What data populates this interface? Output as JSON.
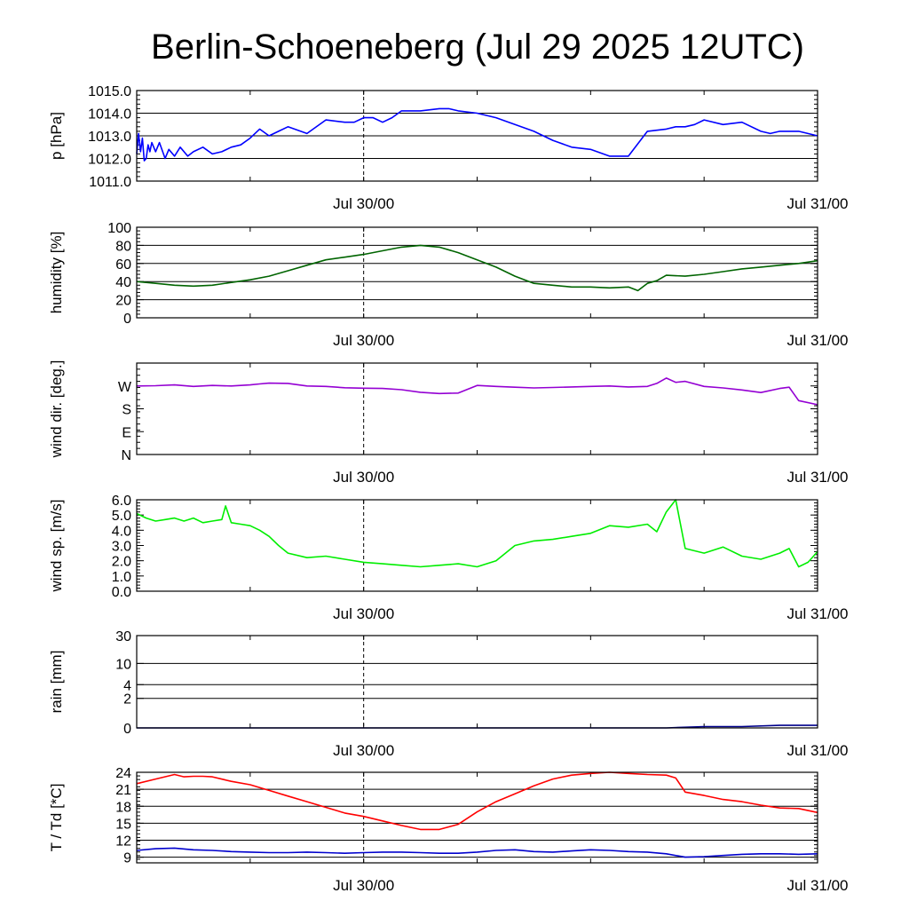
{
  "page": {
    "title": "Berlin-Schoeneberg (Jul 29 2025 12UTC)"
  },
  "chart_data": [
    {
      "type": "line",
      "id": "pressure",
      "ylabel": "p [hPa]",
      "ylim": [
        1011.0,
        1015.0
      ],
      "yticks": [
        {
          "v": 1011.0,
          "label": "1011.0"
        },
        {
          "v": 1012.0,
          "label": "1012.0"
        },
        {
          "v": 1013.0,
          "label": "1013.0"
        },
        {
          "v": 1014.0,
          "label": "1014.0"
        },
        {
          "v": 1015.0,
          "label": "1015.0"
        }
      ],
      "grid": true,
      "xlim": [
        0,
        36
      ],
      "xticks": [
        {
          "v": 12,
          "label": "Jul 30/00"
        },
        {
          "v": 36,
          "label": "Jul 31/00"
        }
      ],
      "series": [
        {
          "color": "#0000ff",
          "x": [
            0,
            0.1,
            0.2,
            0.3,
            0.4,
            0.5,
            0.6,
            0.7,
            0.8,
            1.0,
            1.2,
            1.5,
            1.7,
            2.0,
            2.3,
            2.7,
            3.0,
            3.5,
            4.0,
            4.5,
            5.0,
            5.5,
            6.0,
            6.5,
            7.0,
            7.5,
            8.0,
            9.0,
            10.0,
            11.0,
            11.5,
            12.0,
            12.5,
            13.0,
            13.5,
            14.0,
            15.0,
            16.0,
            16.5,
            17.0,
            18.0,
            19.0,
            20.0,
            21.0,
            22.0,
            23.0,
            24.0,
            25.0,
            26.0,
            27.0,
            28.0,
            28.5,
            29.0,
            29.5,
            30.0,
            31.0,
            32.0,
            33.0,
            33.5,
            34.0,
            35.0,
            36.0
          ],
          "y": [
            1012.2,
            1013.1,
            1012.3,
            1012.9,
            1011.9,
            1012.0,
            1012.6,
            1012.3,
            1012.7,
            1012.3,
            1012.7,
            1012.0,
            1012.4,
            1012.1,
            1012.5,
            1012.1,
            1012.3,
            1012.5,
            1012.2,
            1012.3,
            1012.5,
            1012.6,
            1012.9,
            1013.3,
            1013.0,
            1013.2,
            1013.4,
            1013.1,
            1013.7,
            1013.6,
            1013.6,
            1013.8,
            1013.8,
            1013.6,
            1013.8,
            1014.1,
            1014.1,
            1014.2,
            1014.2,
            1014.1,
            1014.0,
            1013.8,
            1013.5,
            1013.2,
            1012.8,
            1012.5,
            1012.4,
            1012.1,
            1012.1,
            1013.2,
            1013.3,
            1013.4,
            1013.4,
            1013.5,
            1013.7,
            1013.5,
            1013.6,
            1013.2,
            1013.1,
            1013.2,
            1013.2,
            1013.0
          ]
        }
      ]
    },
    {
      "type": "line",
      "id": "humidity",
      "ylabel": "humidity [%]",
      "ylim": [
        0,
        100
      ],
      "yticks": [
        {
          "v": 0,
          "label": "0"
        },
        {
          "v": 20,
          "label": "20"
        },
        {
          "v": 40,
          "label": "40"
        },
        {
          "v": 60,
          "label": "60"
        },
        {
          "v": 80,
          "label": "80"
        },
        {
          "v": 100,
          "label": "100"
        }
      ],
      "grid": true,
      "xlim": [
        0,
        36
      ],
      "xticks": [
        {
          "v": 12,
          "label": "Jul 30/00"
        },
        {
          "v": 36,
          "label": "Jul 31/00"
        }
      ],
      "series": [
        {
          "color": "#006400",
          "x": [
            0,
            1,
            2,
            3,
            4,
            5,
            6,
            7,
            8,
            9,
            10,
            11,
            12,
            13,
            14,
            15,
            16,
            17,
            18,
            19,
            20,
            21,
            22,
            23,
            24,
            25,
            26,
            26.5,
            27,
            27.5,
            28,
            29,
            30,
            31,
            32,
            33,
            34,
            35,
            36
          ],
          "y": [
            40,
            38,
            36,
            35,
            36,
            39,
            42,
            46,
            52,
            58,
            64,
            67,
            70,
            74,
            78,
            80,
            78,
            72,
            64,
            56,
            46,
            38,
            36,
            34,
            34,
            33,
            34,
            30,
            38,
            41,
            47,
            46,
            48,
            51,
            54,
            56,
            58,
            60,
            63
          ]
        }
      ]
    },
    {
      "type": "line",
      "id": "wind_direction",
      "ylabel": "wind dir. [deg.]",
      "ylim": [
        0,
        360
      ],
      "yticks": [
        {
          "v": 0,
          "label": "N"
        },
        {
          "v": 90,
          "label": "E"
        },
        {
          "v": 180,
          "label": "S"
        },
        {
          "v": 270,
          "label": "W"
        }
      ],
      "grid": false,
      "xlim": [
        0,
        36
      ],
      "xticks": [
        {
          "v": 12,
          "label": "Jul 30/00"
        },
        {
          "v": 36,
          "label": "Jul 31/00"
        }
      ],
      "series": [
        {
          "color": "#9400d3",
          "x": [
            0,
            1,
            2,
            3,
            4,
            5,
            6,
            6.5,
            7,
            8,
            9,
            10,
            11,
            12,
            13,
            14,
            15,
            16,
            17,
            18,
            19,
            20,
            21,
            22,
            23,
            24,
            25,
            26,
            27,
            27.5,
            28,
            28.5,
            29,
            30,
            31,
            32,
            33,
            34,
            34.5,
            35,
            36
          ],
          "y": [
            270,
            271,
            274,
            268,
            272,
            270,
            274,
            278,
            281,
            280,
            270,
            268,
            263,
            261,
            260,
            255,
            245,
            240,
            242,
            272,
            268,
            265,
            262,
            264,
            266,
            268,
            270,
            266,
            268,
            280,
            301,
            284,
            288,
            268,
            262,
            254,
            244,
            260,
            265,
            212,
            196
          ]
        }
      ]
    },
    {
      "type": "line",
      "id": "wind_speed",
      "ylabel": "wind sp. [m/s]",
      "ylim": [
        0,
        6
      ],
      "yticks": [
        {
          "v": 0,
          "label": "0.0"
        },
        {
          "v": 1,
          "label": "1.0"
        },
        {
          "v": 2,
          "label": "2.0"
        },
        {
          "v": 3,
          "label": "3.0"
        },
        {
          "v": 4,
          "label": "4.0"
        },
        {
          "v": 5,
          "label": "5.0"
        },
        {
          "v": 6,
          "label": "6.0"
        }
      ],
      "grid": false,
      "xlim": [
        0,
        36
      ],
      "xticks": [
        {
          "v": 12,
          "label": "Jul 30/00"
        },
        {
          "v": 36,
          "label": "Jul 31/00"
        }
      ],
      "series": [
        {
          "color": "#00ee00",
          "x": [
            0,
            0.5,
            1,
            1.5,
            2,
            2.5,
            3,
            3.5,
            4,
            4.5,
            4.7,
            5,
            5.5,
            6,
            6.5,
            7,
            7.5,
            8,
            9,
            10,
            11,
            12,
            13,
            14,
            15,
            16,
            17,
            18,
            19,
            20,
            21,
            22,
            23,
            24,
            25,
            26,
            27,
            27.5,
            28,
            28.5,
            29,
            30,
            31,
            32,
            33,
            34,
            34.5,
            35,
            35.5,
            36
          ],
          "y": [
            5.1,
            4.8,
            4.6,
            4.7,
            4.8,
            4.6,
            4.8,
            4.5,
            4.6,
            4.7,
            5.6,
            4.5,
            4.4,
            4.3,
            4.0,
            3.6,
            3.0,
            2.5,
            2.2,
            2.3,
            2.1,
            1.9,
            1.8,
            1.7,
            1.6,
            1.7,
            1.8,
            1.6,
            2.0,
            3.0,
            3.3,
            3.4,
            3.6,
            3.8,
            4.3,
            4.2,
            4.4,
            3.9,
            5.2,
            6.0,
            2.8,
            2.5,
            2.9,
            2.3,
            2.1,
            2.5,
            2.8,
            1.6,
            1.9,
            2.6
          ]
        }
      ]
    },
    {
      "type": "line",
      "id": "rain",
      "ylabel": "rain [mm]",
      "ylim": [
        0,
        30
      ],
      "yticks": [
        {
          "v": 0,
          "label": "0"
        },
        {
          "v": 2,
          "label": "2"
        },
        {
          "v": 4,
          "label": "4"
        },
        {
          "v": 10,
          "label": "10"
        },
        {
          "v": 30,
          "label": "30"
        }
      ],
      "grid": true,
      "xlim": [
        0,
        36
      ],
      "xticks": [
        {
          "v": 12,
          "label": "Jul 30/00"
        },
        {
          "v": 36,
          "label": "Jul 31/00"
        }
      ],
      "series": [
        {
          "color": "#00008b",
          "x": [
            0,
            28,
            30,
            32,
            34,
            36
          ],
          "y": [
            0,
            0,
            0.05,
            0.05,
            0.1,
            0.1
          ]
        }
      ]
    },
    {
      "type": "line",
      "id": "temperature",
      "ylabel": "T / Td [*C]",
      "ylim": [
        8,
        24
      ],
      "yticks": [
        {
          "v": 9,
          "label": "9"
        },
        {
          "v": 12,
          "label": "12"
        },
        {
          "v": 15,
          "label": "15"
        },
        {
          "v": 18,
          "label": "18"
        },
        {
          "v": 21,
          "label": "21"
        },
        {
          "v": 24,
          "label": "24"
        }
      ],
      "grid": true,
      "xlim": [
        0,
        36
      ],
      "xticks": [
        {
          "v": 12,
          "label": "Jul 30/00"
        },
        {
          "v": 36,
          "label": "Jul 31/00"
        }
      ],
      "series": [
        {
          "color": "#ff0000",
          "x": [
            0,
            1,
            2,
            2.5,
            3,
            3.5,
            4,
            5,
            6,
            7,
            8,
            9,
            10,
            11,
            12,
            13,
            14,
            15,
            16,
            17,
            18,
            19,
            20,
            21,
            22,
            23,
            24,
            25,
            26,
            27,
            28,
            28.5,
            29,
            30,
            31,
            32,
            33,
            34,
            35,
            36
          ],
          "y": [
            22.0,
            22.8,
            23.6,
            23.2,
            23.3,
            23.3,
            23.2,
            22.4,
            21.8,
            20.8,
            19.8,
            18.8,
            17.8,
            16.8,
            16.2,
            15.4,
            14.6,
            13.9,
            13.9,
            14.8,
            17.0,
            18.8,
            20.2,
            21.6,
            22.8,
            23.5,
            23.8,
            24.0,
            23.8,
            23.6,
            23.5,
            23.0,
            20.5,
            19.9,
            19.2,
            18.8,
            18.2,
            17.7,
            17.6,
            16.9
          ]
        },
        {
          "color": "#0000cd",
          "x": [
            0,
            1,
            2,
            3,
            4,
            5,
            6,
            7,
            8,
            9,
            10,
            11,
            12,
            13,
            14,
            15,
            16,
            17,
            18,
            19,
            20,
            21,
            22,
            23,
            24,
            25,
            26,
            27,
            28,
            29,
            30,
            31,
            32,
            33,
            34,
            35,
            36
          ],
          "y": [
            10.2,
            10.5,
            10.6,
            10.3,
            10.2,
            10.0,
            9.9,
            9.8,
            9.8,
            9.9,
            9.8,
            9.7,
            9.8,
            9.9,
            9.9,
            9.8,
            9.7,
            9.7,
            9.9,
            10.2,
            10.3,
            10.0,
            9.9,
            10.1,
            10.3,
            10.2,
            10.0,
            9.9,
            9.6,
            9.0,
            9.1,
            9.3,
            9.5,
            9.6,
            9.6,
            9.5,
            9.6
          ]
        }
      ]
    }
  ]
}
